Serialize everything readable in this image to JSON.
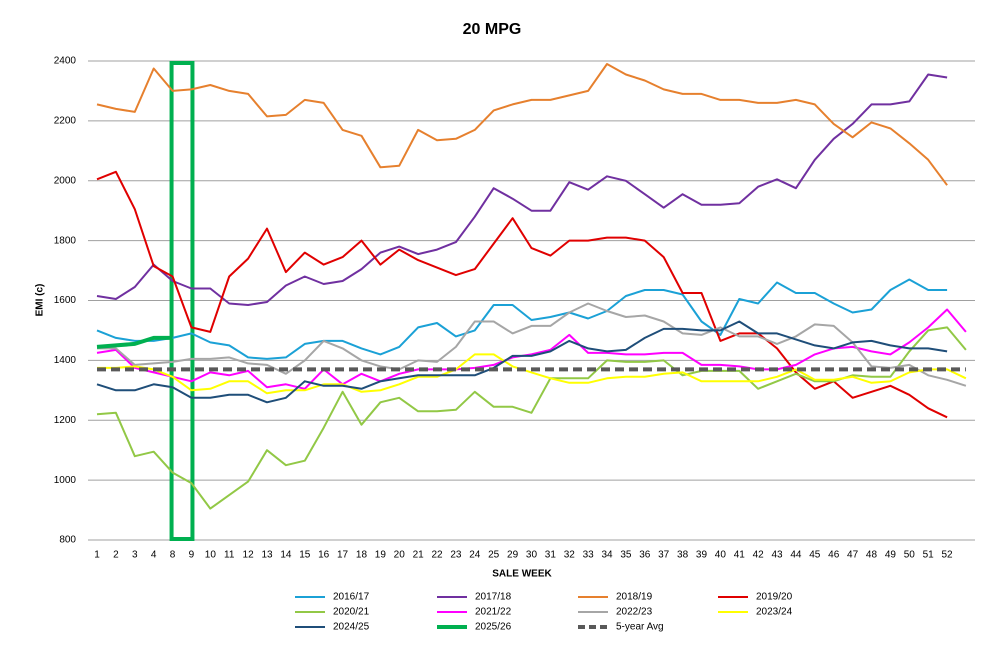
{
  "chart_data": {
    "type": "line",
    "title": "20 MPG",
    "y_label": "EMI (c)",
    "x_label": "SALE WEEK",
    "categories": [
      "1",
      "2",
      "3",
      "4",
      "8",
      "9",
      "10",
      "11",
      "12",
      "13",
      "14",
      "15",
      "16",
      "17",
      "18",
      "19",
      "20",
      "21",
      "22",
      "23",
      "24",
      "25",
      "29",
      "30",
      "31",
      "32",
      "33",
      "34",
      "35",
      "36",
      "37",
      "38",
      "39",
      "40",
      "41",
      "42",
      "43",
      "44",
      "45",
      "46",
      "47",
      "48",
      "49",
      "50",
      "51",
      "52",
      null
    ],
    "ylim": [
      800,
      2400
    ],
    "yticks": [
      800,
      1000,
      1200,
      1400,
      1600,
      1800,
      2000,
      2200,
      2400
    ],
    "grid": true,
    "series": [
      {
        "name": "2016/17",
        "color": "#1ba1d6",
        "width": 2,
        "values": [
          1500,
          1475,
          1465,
          1465,
          1475,
          1490,
          1460,
          1450,
          1410,
          1405,
          1410,
          1455,
          1465,
          1465,
          1440,
          1420,
          1445,
          1510,
          1525,
          1480,
          1500,
          1585,
          1585,
          1535,
          1545,
          1560,
          1540,
          1565,
          1615,
          1635,
          1635,
          1620,
          1530,
          1485,
          1605,
          1590,
          1660,
          1625,
          1625,
          1590,
          1560,
          1570,
          1635,
          1670,
          1635,
          1635,
          null
        ]
      },
      {
        "name": "2017/18",
        "color": "#7030a0",
        "width": 2,
        "values": [
          1615,
          1605,
          1645,
          1720,
          1665,
          1640,
          1640,
          1590,
          1585,
          1595,
          1650,
          1680,
          1655,
          1665,
          1705,
          1760,
          1780,
          1755,
          1770,
          1795,
          1880,
          1975,
          1940,
          1900,
          1900,
          1995,
          1970,
          2015,
          2000,
          1955,
          1910,
          1955,
          1920,
          1920,
          1925,
          1980,
          2005,
          1975,
          2070,
          2140,
          2190,
          2255,
          2255,
          2265,
          2355,
          2345,
          null
        ]
      },
      {
        "name": "2018/19",
        "color": "#e6802e",
        "width": 2,
        "values": [
          2255,
          2240,
          2230,
          2375,
          2300,
          2305,
          2320,
          2300,
          2290,
          2215,
          2220,
          2270,
          2260,
          2170,
          2150,
          2045,
          2050,
          2170,
          2135,
          2140,
          2170,
          2235,
          2255,
          2270,
          2270,
          2285,
          2300,
          2390,
          2355,
          2335,
          2305,
          2290,
          2290,
          2270,
          2270,
          2260,
          2260,
          2270,
          2255,
          2190,
          2145,
          2195,
          2175,
          2125,
          2070,
          1985,
          null
        ]
      },
      {
        "name": "2019/20",
        "color": "#e00000",
        "width": 2,
        "values": [
          2005,
          2030,
          1905,
          1715,
          1680,
          1510,
          1495,
          1680,
          1740,
          1840,
          1695,
          1760,
          1720,
          1745,
          1800,
          1720,
          1770,
          1735,
          1710,
          1685,
          1705,
          1790,
          1875,
          1775,
          1750,
          1800,
          1800,
          1810,
          1810,
          1800,
          1745,
          1625,
          1625,
          1465,
          1490,
          1490,
          1440,
          1360,
          1305,
          1330,
          1275,
          1295,
          1315,
          1285,
          1240,
          1210,
          null
        ]
      },
      {
        "name": "2020/21",
        "color": "#92c846",
        "width": 2,
        "values": [
          1220,
          1225,
          1080,
          1095,
          1025,
          990,
          905,
          950,
          995,
          1100,
          1050,
          1065,
          1175,
          1295,
          1185,
          1260,
          1275,
          1230,
          1230,
          1235,
          1295,
          1245,
          1245,
          1225,
          1340,
          1340,
          1340,
          1400,
          1395,
          1395,
          1400,
          1350,
          1365,
          1365,
          1365,
          1305,
          1330,
          1355,
          1330,
          1330,
          1350,
          1345,
          1345,
          1430,
          1500,
          1510,
          1435
        ]
      },
      {
        "name": "2021/22",
        "color": "#ff00ff",
        "width": 2,
        "values": [
          1425,
          1435,
          1375,
          1360,
          1345,
          1330,
          1360,
          1350,
          1365,
          1310,
          1320,
          1305,
          1370,
          1320,
          1355,
          1330,
          1355,
          1370,
          1370,
          1370,
          1375,
          1385,
          1410,
          1420,
          1435,
          1485,
          1425,
          1425,
          1420,
          1420,
          1425,
          1425,
          1385,
          1385,
          1380,
          1370,
          1370,
          1385,
          1420,
          1440,
          1445,
          1430,
          1420,
          1460,
          1510,
          1570,
          1495
        ]
      },
      {
        "name": "2022/23",
        "color": "#a6a6a6",
        "width": 2,
        "values": [
          1440,
          1440,
          1385,
          1390,
          1395,
          1405,
          1405,
          1410,
          1390,
          1385,
          1355,
          1400,
          1465,
          1440,
          1400,
          1380,
          1370,
          1400,
          1395,
          1445,
          1530,
          1530,
          1490,
          1515,
          1515,
          1560,
          1590,
          1565,
          1545,
          1550,
          1530,
          1490,
          1485,
          1510,
          1480,
          1480,
          1455,
          1480,
          1520,
          1515,
          1460,
          1380,
          1375,
          1385,
          1350,
          1335,
          1315
        ]
      },
      {
        "name": "2023/24",
        "color": "#ffff00",
        "width": 2,
        "values": [
          1375,
          1375,
          1380,
          1370,
          1345,
          1300,
          1305,
          1330,
          1330,
          1290,
          1300,
          1300,
          1320,
          1320,
          1295,
          1300,
          1320,
          1345,
          1345,
          1370,
          1420,
          1420,
          1380,
          1360,
          1340,
          1325,
          1325,
          1340,
          1345,
          1345,
          1355,
          1360,
          1330,
          1330,
          1330,
          1330,
          1345,
          1370,
          1335,
          1335,
          1345,
          1325,
          1330,
          1360,
          1370,
          1370,
          1340
        ]
      },
      {
        "name": "2024/25",
        "color": "#1f4e79",
        "width": 2,
        "values": [
          1320,
          1300,
          1300,
          1320,
          1310,
          1275,
          1275,
          1285,
          1285,
          1260,
          1275,
          1330,
          1315,
          1315,
          1305,
          1330,
          1340,
          1350,
          1350,
          1350,
          1350,
          1375,
          1415,
          1415,
          1430,
          1465,
          1440,
          1430,
          1435,
          1475,
          1505,
          1505,
          1500,
          1500,
          1530,
          1490,
          1490,
          1470,
          1450,
          1440,
          1460,
          1465,
          1450,
          1440,
          1440,
          1430,
          null
        ]
      },
      {
        "name": "2025/26",
        "color": "#00b050",
        "width": 4,
        "values": [
          1445,
          1450,
          1455,
          1475,
          1475,
          null,
          null,
          null,
          null,
          null,
          null,
          null,
          null,
          null,
          null,
          null,
          null,
          null,
          null,
          null,
          null,
          null,
          null,
          null,
          null,
          null,
          null,
          null,
          null,
          null,
          null,
          null,
          null,
          null,
          null,
          null,
          null,
          null,
          null,
          null,
          null,
          null,
          null,
          null,
          null,
          null,
          null
        ]
      },
      {
        "name": "5-year Avg",
        "color": "#595959",
        "width": 4,
        "dash": true,
        "values": [
          1370,
          1370,
          1370,
          1370,
          1370,
          1370,
          1370,
          1370,
          1370,
          1370,
          1370,
          1370,
          1370,
          1370,
          1370,
          1370,
          1370,
          1370,
          1370,
          1370,
          1370,
          1370,
          1370,
          1370,
          1370,
          1370,
          1370,
          1370,
          1370,
          1370,
          1370,
          1370,
          1370,
          1370,
          1370,
          1370,
          1370,
          1370,
          1370,
          1370,
          1370,
          1370,
          1370,
          1370,
          1370,
          1370,
          1370
        ]
      }
    ]
  }
}
